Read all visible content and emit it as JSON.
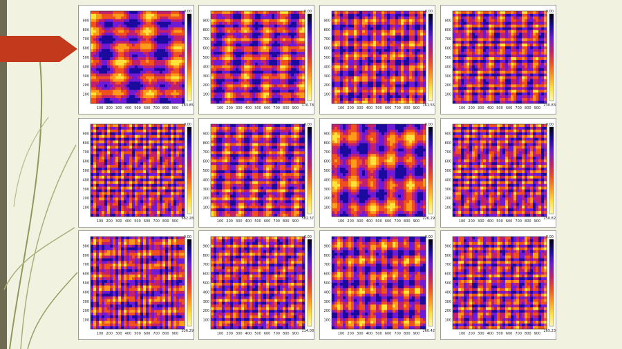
{
  "slide": {
    "colors": {
      "background": "#f1f3e0",
      "arrow": "#c2391c",
      "left_bar": "#6f6a52"
    }
  },
  "colormap": [
    "#000000",
    "#1a0a9e",
    "#6e1ad6",
    "#c0206d",
    "#f0501e",
    "#ff9a1a",
    "#ffe23a",
    "#fff7b0"
  ],
  "chart_data": [
    {
      "type": "heatmap",
      "x_ticks": [
        "100",
        "200",
        "300",
        "400",
        "500",
        "600",
        "700",
        "800",
        "900"
      ],
      "y_ticks": [
        "100",
        "200",
        "300",
        "400",
        "500",
        "600",
        "700",
        "800",
        "900"
      ],
      "colorbar": {
        "max": "0.00",
        "min": "183.85"
      }
    },
    {
      "type": "heatmap",
      "x_ticks": [
        "100",
        "200",
        "300",
        "400",
        "500",
        "600",
        "700",
        "800",
        "900"
      ],
      "y_ticks": [
        "100",
        "200",
        "300",
        "400",
        "500",
        "600",
        "700",
        "800",
        "900"
      ],
      "colorbar": {
        "max": "0.00",
        "min": "176.78"
      }
    },
    {
      "type": "heatmap",
      "x_ticks": [
        "100",
        "200",
        "300",
        "400",
        "500",
        "600",
        "700",
        "800",
        "900"
      ],
      "y_ticks": [
        "100",
        "200",
        "300",
        "400",
        "500",
        "600",
        "700",
        "800",
        "900"
      ],
      "colorbar": {
        "max": "0.00",
        "min": "161.55"
      }
    },
    {
      "type": "heatmap",
      "x_ticks": [
        "100",
        "200",
        "300",
        "400",
        "500",
        "600",
        "700",
        "800",
        "900"
      ],
      "y_ticks": [
        "100",
        "200",
        "300",
        "400",
        "500",
        "600",
        "700",
        "800",
        "900"
      ],
      "colorbar": {
        "max": "0.00",
        "min": "230.83"
      }
    },
    {
      "type": "heatmap",
      "x_ticks": [
        "100",
        "200",
        "300",
        "400",
        "500",
        "600",
        "700",
        "800",
        "900"
      ],
      "y_ticks": [
        "100",
        "200",
        "300",
        "400",
        "500",
        "600",
        "700",
        "800",
        "900"
      ],
      "colorbar": {
        "max": "0.00",
        "min": "682.28"
      }
    },
    {
      "type": "heatmap",
      "x_ticks": [
        "100",
        "200",
        "300",
        "400",
        "500",
        "600",
        "700",
        "800",
        "900"
      ],
      "y_ticks": [
        "100",
        "200",
        "300",
        "400",
        "500",
        "600",
        "700",
        "800",
        "900"
      ],
      "colorbar": {
        "max": "0.00",
        "min": "582.37"
      }
    },
    {
      "type": "heatmap",
      "x_ticks": [
        "100",
        "200",
        "300",
        "400",
        "500",
        "600",
        "700",
        "800",
        "900"
      ],
      "y_ticks": [
        "100",
        "200",
        "300",
        "400",
        "500",
        "600",
        "700",
        "800",
        "900"
      ],
      "colorbar": {
        "max": "0.00",
        "min": "226.29"
      }
    },
    {
      "type": "heatmap",
      "x_ticks": [
        "100",
        "200",
        "300",
        "400",
        "500",
        "600",
        "700",
        "800",
        "900"
      ],
      "y_ticks": [
        "100",
        "200",
        "300",
        "400",
        "500",
        "600",
        "700",
        "800",
        "900"
      ],
      "colorbar": {
        "max": "0.00",
        "min": "250.82"
      }
    },
    {
      "type": "heatmap",
      "x_ticks": [
        "100",
        "200",
        "300",
        "400",
        "500",
        "600",
        "700",
        "800",
        "900"
      ],
      "y_ticks": [
        "100",
        "200",
        "300",
        "400",
        "500",
        "600",
        "700",
        "800",
        "900"
      ],
      "colorbar": {
        "max": "0.00",
        "min": "336.29"
      }
    },
    {
      "type": "heatmap",
      "x_ticks": [
        "100",
        "200",
        "300",
        "400",
        "500",
        "600",
        "700",
        "800",
        "900"
      ],
      "y_ticks": [
        "100",
        "200",
        "300",
        "400",
        "500",
        "600",
        "700",
        "800",
        "900"
      ],
      "colorbar": {
        "max": "0.00",
        "min": "114.08"
      }
    },
    {
      "type": "heatmap",
      "x_ticks": [
        "100",
        "200",
        "300",
        "400",
        "500",
        "600",
        "700",
        "800",
        "900"
      ],
      "y_ticks": [
        "100",
        "200",
        "300",
        "400",
        "500",
        "600",
        "700",
        "800",
        "900"
      ],
      "colorbar": {
        "max": "0.00",
        "min": "260.42"
      }
    },
    {
      "type": "heatmap",
      "x_ticks": [
        "100",
        "200",
        "300",
        "400",
        "500",
        "600",
        "700",
        "800",
        "900"
      ],
      "y_ticks": [
        "100",
        "200",
        "300",
        "400",
        "500",
        "600",
        "700",
        "800",
        "900"
      ],
      "colorbar": {
        "max": "0.00",
        "min": "265.23"
      }
    }
  ]
}
